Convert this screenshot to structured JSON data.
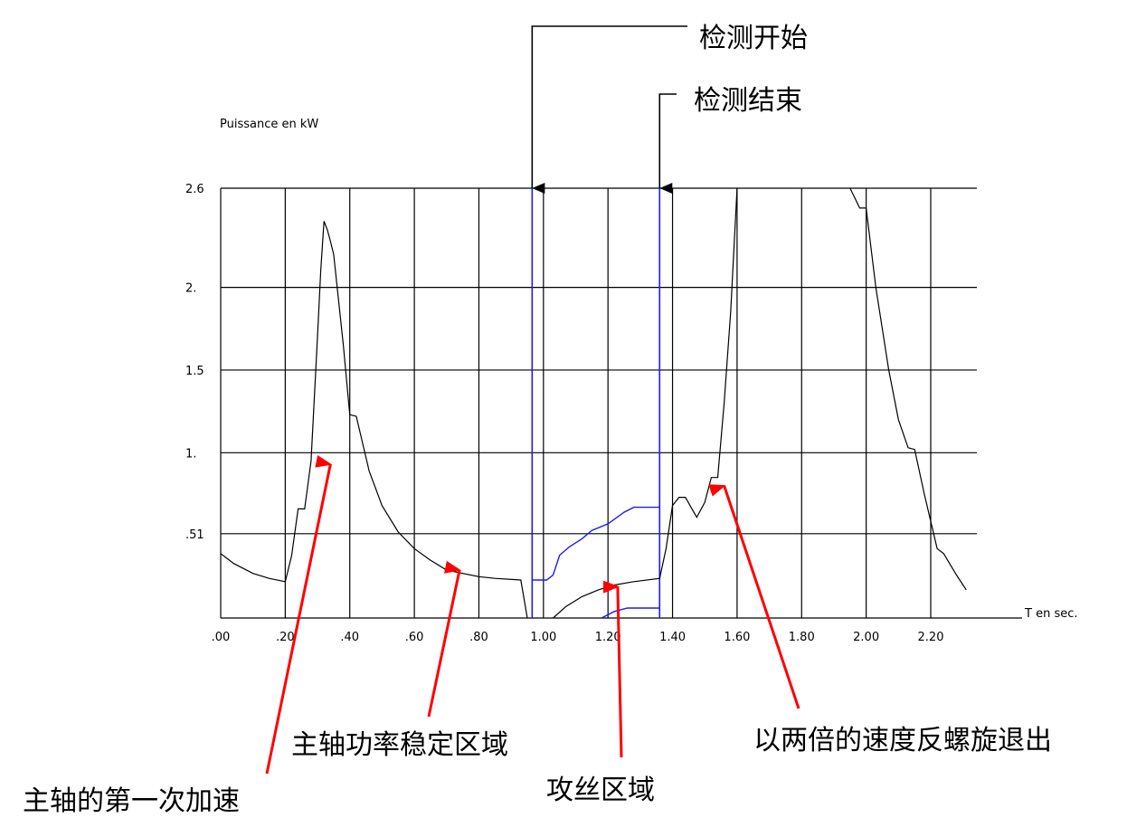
{
  "chart_data": {
    "type": "line",
    "ylabel": "Puissance en kW",
    "xlabel": "T en sec.",
    "xlim": [
      0.0,
      2.34
    ],
    "ylim": [
      0.0,
      2.6
    ],
    "x_ticks": [
      0.0,
      0.2,
      0.4,
      0.6,
      0.8,
      1.0,
      1.2,
      1.4,
      1.6,
      1.8,
      2.0,
      2.2
    ],
    "x_tick_labels": [
      ".00",
      ".20",
      ".40",
      ".60",
      ".80",
      "1.00",
      "1.20",
      "1.40",
      "1.60",
      "1.80",
      "2.00",
      "2.20"
    ],
    "y_ticks": [
      0.51,
      1.0,
      1.5,
      2.0,
      2.6
    ],
    "y_tick_labels": [
      ".51",
      "1.",
      "1.5",
      "2.",
      "2.6"
    ],
    "grid": true,
    "vertical_markers": [
      {
        "x": 0.965,
        "color": "#1a1aff"
      },
      {
        "x": 1.36,
        "color": "#1a1aff"
      }
    ],
    "series": [
      {
        "color": "#000000",
        "points": [
          [
            0.0,
            0.39
          ],
          [
            0.04,
            0.33
          ],
          [
            0.1,
            0.27
          ],
          [
            0.15,
            0.24
          ],
          [
            0.2,
            0.22
          ],
          [
            0.22,
            0.38
          ],
          [
            0.24,
            0.66
          ],
          [
            0.26,
            0.66
          ],
          [
            0.28,
            0.95
          ],
          [
            0.3,
            1.7
          ],
          [
            0.31,
            2.1
          ],
          [
            0.32,
            2.4
          ],
          [
            0.33,
            2.35
          ],
          [
            0.34,
            2.28
          ],
          [
            0.35,
            2.2
          ],
          [
            0.38,
            1.65
          ],
          [
            0.4,
            1.23
          ],
          [
            0.42,
            1.22
          ],
          [
            0.46,
            0.89
          ],
          [
            0.5,
            0.68
          ],
          [
            0.55,
            0.52
          ],
          [
            0.6,
            0.42
          ],
          [
            0.65,
            0.35
          ],
          [
            0.7,
            0.29
          ],
          [
            0.75,
            0.27
          ],
          [
            0.8,
            0.25
          ],
          [
            0.85,
            0.24
          ],
          [
            0.93,
            0.23
          ],
          [
            0.95,
            0.0
          ]
        ]
      },
      {
        "color": "#000000",
        "points": [
          [
            1.03,
            0.0
          ],
          [
            1.07,
            0.07
          ],
          [
            1.12,
            0.13
          ],
          [
            1.17,
            0.17
          ],
          [
            1.22,
            0.2
          ],
          [
            1.28,
            0.22
          ],
          [
            1.36,
            0.24
          ],
          [
            1.38,
            0.42
          ],
          [
            1.4,
            0.68
          ],
          [
            1.42,
            0.73
          ],
          [
            1.44,
            0.73
          ],
          [
            1.46,
            0.66
          ],
          [
            1.475,
            0.61
          ],
          [
            1.5,
            0.7
          ],
          [
            1.52,
            0.85
          ],
          [
            1.54,
            0.85
          ],
          [
            1.56,
            1.3
          ],
          [
            1.58,
            1.85
          ],
          [
            1.6,
            2.6
          ]
        ]
      },
      {
        "color": "#000000",
        "points": [
          [
            1.95,
            2.6
          ],
          [
            1.98,
            2.48
          ],
          [
            2.0,
            2.48
          ],
          [
            2.03,
            2.0
          ],
          [
            2.07,
            1.5
          ],
          [
            2.1,
            1.2
          ],
          [
            2.13,
            1.03
          ],
          [
            2.15,
            1.02
          ],
          [
            2.18,
            0.75
          ],
          [
            2.22,
            0.42
          ],
          [
            2.24,
            0.39
          ],
          [
            2.28,
            0.26
          ],
          [
            2.31,
            0.17
          ]
        ]
      },
      {
        "color": "#1a1aff",
        "points": [
          [
            0.965,
            0.23
          ],
          [
            1.01,
            0.23
          ],
          [
            1.03,
            0.26
          ],
          [
            1.05,
            0.38
          ],
          [
            1.08,
            0.43
          ],
          [
            1.12,
            0.48
          ],
          [
            1.15,
            0.53
          ],
          [
            1.2,
            0.57
          ],
          [
            1.25,
            0.64
          ],
          [
            1.28,
            0.67
          ],
          [
            1.36,
            0.67
          ]
        ]
      },
      {
        "color": "#1a1aff",
        "points": [
          [
            1.18,
            0.0
          ],
          [
            1.22,
            0.04
          ],
          [
            1.26,
            0.06
          ],
          [
            1.36,
            0.06
          ]
        ]
      }
    ],
    "annotations": [
      {
        "text": "检测开始",
        "color": "#000000",
        "target": [
          0.965,
          2.6
        ]
      },
      {
        "text": "检测结束",
        "color": "#000000",
        "target": [
          1.36,
          2.6
        ]
      },
      {
        "text": "主轴的第一次加速",
        "color": "#ff0000",
        "target": [
          0.34,
          0.93
        ]
      },
      {
        "text": "主轴功率稳定区域",
        "color": "#ff0000",
        "target": [
          0.74,
          0.29
        ]
      },
      {
        "text": "攻丝区域",
        "color": "#ff0000",
        "target": [
          1.23,
          0.19
        ]
      },
      {
        "text": "以两倍的速度反螺旋退出",
        "color": "#ff0000",
        "target": [
          1.56,
          0.8
        ]
      }
    ]
  }
}
